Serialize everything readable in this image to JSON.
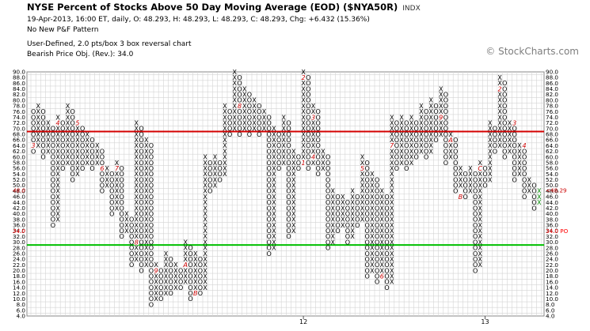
{
  "header": {
    "title": "NYSE Percent of Stocks Above 50 Day Moving Average (EOD) ($NYA50R)",
    "exchange": "INDX",
    "date_line": "19-Apr-2013, 16:00 ET, daily, O: 48.293, H: 48.293, L: 48.293, C: 48.293, Chg: +6.432 (15.36%)",
    "pattern": "No New P&F Pattern",
    "scale": "User-Defined, 2.0 pts/box 3 box reversal chart",
    "bearish_po": "Bearish Price Obj. (Rev.): 34.0",
    "watermark": "© StockCharts.com"
  },
  "colors": {
    "upper_line": "#d40000",
    "lower_line": "#00c000",
    "last_column": "#008800",
    "month_marker": "#cc0000",
    "po_marker": "#ff0000",
    "price_tag": "#cc0000"
  },
  "chart_data": {
    "type": "point_and_figure",
    "box_size": 2.0,
    "reversal": 3,
    "ylim": [
      4,
      90
    ],
    "y_ticks": [
      4,
      6,
      8,
      10,
      12,
      14,
      16,
      18,
      20,
      22,
      24,
      26,
      28,
      30,
      32,
      34,
      36,
      38,
      40,
      42,
      44,
      46,
      48,
      50,
      52,
      54,
      56,
      58,
      60,
      62,
      64,
      66,
      68,
      70,
      72,
      74,
      76,
      78,
      80,
      82,
      84,
      86,
      88,
      90
    ],
    "horizontal_lines": [
      70,
      30
    ],
    "x_tick_labels": [
      "12",
      "13"
    ],
    "columns": [
      {
        "type": "O",
        "from": 76,
        "to": 62
      },
      {
        "type": "X",
        "from": 64,
        "to": 78
      },
      {
        "type": "O",
        "from": 76,
        "to": 60
      },
      {
        "type": "X",
        "from": 62,
        "to": 72
      },
      {
        "type": "O",
        "from": 70,
        "to": 36
      },
      {
        "type": "X",
        "from": 38,
        "to": 74
      },
      {
        "type": "O",
        "from": 72,
        "to": 56
      },
      {
        "type": "X",
        "from": 58,
        "to": 78
      },
      {
        "type": "O",
        "from": 76,
        "to": 52
      },
      {
        "type": "X",
        "from": 54,
        "to": 72
      },
      {
        "type": "O",
        "from": 70,
        "to": 56
      },
      {
        "type": "X",
        "from": 58,
        "to": 68
      },
      {
        "type": "O",
        "from": 66,
        "to": 56
      },
      {
        "type": "X",
        "from": 58,
        "to": 64
      },
      {
        "type": "O",
        "from": 62,
        "to": 48
      },
      {
        "type": "X",
        "from": 50,
        "to": 56
      },
      {
        "type": "O",
        "from": 54,
        "to": 40
      },
      {
        "type": "X",
        "from": 42,
        "to": 58
      },
      {
        "type": "O",
        "from": 56,
        "to": 32
      },
      {
        "type": "X",
        "from": 34,
        "to": 40
      },
      {
        "type": "O",
        "from": 38,
        "to": 22
      },
      {
        "type": "X",
        "from": 24,
        "to": 72
      },
      {
        "type": "O",
        "from": 70,
        "to": 20
      },
      {
        "type": "X",
        "from": 22,
        "to": 66
      },
      {
        "type": "O",
        "from": 64,
        "to": 8
      },
      {
        "type": "X",
        "from": 10,
        "to": 22
      },
      {
        "type": "O",
        "from": 20,
        "to": 10
      },
      {
        "type": "X",
        "from": 12,
        "to": 26
      },
      {
        "type": "O",
        "from": 24,
        "to": 12
      },
      {
        "type": "X",
        "from": 14,
        "to": 22
      },
      {
        "type": "O",
        "from": 20,
        "to": 14
      },
      {
        "type": "X",
        "from": 16,
        "to": 30
      },
      {
        "type": "O",
        "from": 28,
        "to": 10
      },
      {
        "type": "X",
        "from": 12,
        "to": 26
      },
      {
        "type": "O",
        "from": 24,
        "to": 12
      },
      {
        "type": "X",
        "from": 14,
        "to": 60
      },
      {
        "type": "O",
        "from": 58,
        "to": 48
      },
      {
        "type": "X",
        "from": 50,
        "to": 60
      },
      {
        "type": "O",
        "from": 58,
        "to": 52
      },
      {
        "type": "X",
        "from": 54,
        "to": 78
      },
      {
        "type": "O",
        "from": 76,
        "to": 68
      },
      {
        "type": "X",
        "from": 70,
        "to": 90
      },
      {
        "type": "O",
        "from": 88,
        "to": 68
      },
      {
        "type": "X",
        "from": 70,
        "to": 84
      },
      {
        "type": "O",
        "from": 82,
        "to": 68
      },
      {
        "type": "X",
        "from": 70,
        "to": 80
      },
      {
        "type": "O",
        "from": 78,
        "to": 68
      },
      {
        "type": "X",
        "from": 70,
        "to": 76
      },
      {
        "type": "O",
        "from": 74,
        "to": 26
      },
      {
        "type": "X",
        "from": 28,
        "to": 70
      },
      {
        "type": "O",
        "from": 68,
        "to": 56
      },
      {
        "type": "X",
        "from": 58,
        "to": 74
      },
      {
        "type": "O",
        "from": 72,
        "to": 32
      },
      {
        "type": "X",
        "from": 34,
        "to": 62
      },
      {
        "type": "O",
        "from": 60,
        "to": 56
      },
      {
        "type": "X",
        "from": 58,
        "to": 90
      },
      {
        "type": "O",
        "from": 88,
        "to": 56
      },
      {
        "type": "X",
        "from": 58,
        "to": 78
      },
      {
        "type": "O",
        "from": 76,
        "to": 54
      },
      {
        "type": "X",
        "from": 56,
        "to": 62
      },
      {
        "type": "O",
        "from": 60,
        "to": 28
      },
      {
        "type": "X",
        "from": 30,
        "to": 48
      },
      {
        "type": "O",
        "from": 46,
        "to": 34
      },
      {
        "type": "X",
        "from": 36,
        "to": 46
      },
      {
        "type": "O",
        "from": 44,
        "to": 30
      },
      {
        "type": "X",
        "from": 32,
        "to": 48
      },
      {
        "type": "O",
        "from": 46,
        "to": 36
      },
      {
        "type": "X",
        "from": 38,
        "to": 60
      },
      {
        "type": "O",
        "from": 58,
        "to": 18
      },
      {
        "type": "X",
        "from": 20,
        "to": 54
      },
      {
        "type": "O",
        "from": 52,
        "to": 16
      },
      {
        "type": "X",
        "from": 18,
        "to": 48
      },
      {
        "type": "O",
        "from": 46,
        "to": 14
      },
      {
        "type": "X",
        "from": 16,
        "to": 74
      },
      {
        "type": "O",
        "from": 72,
        "to": 56
      },
      {
        "type": "X",
        "from": 58,
        "to": 74
      },
      {
        "type": "O",
        "from": 72,
        "to": 56
      },
      {
        "type": "X",
        "from": 58,
        "to": 74
      },
      {
        "type": "O",
        "from": 72,
        "to": 60
      },
      {
        "type": "X",
        "from": 62,
        "to": 78
      },
      {
        "type": "O",
        "from": 76,
        "to": 60
      },
      {
        "type": "X",
        "from": 62,
        "to": 80
      },
      {
        "type": "O",
        "from": 78,
        "to": 66
      },
      {
        "type": "X",
        "from": 68,
        "to": 84
      },
      {
        "type": "O",
        "from": 82,
        "to": 58
      },
      {
        "type": "X",
        "from": 60,
        "to": 68
      },
      {
        "type": "O",
        "from": 66,
        "to": 48
      },
      {
        "type": "X",
        "from": 50,
        "to": 56
      },
      {
        "type": "O",
        "from": 54,
        "to": 46
      },
      {
        "type": "X",
        "from": 48,
        "to": 56
      },
      {
        "type": "O",
        "from": 54,
        "to": 20
      },
      {
        "type": "X",
        "from": 22,
        "to": 58
      },
      {
        "type": "O",
        "from": 56,
        "to": 50
      },
      {
        "type": "X",
        "from": 52,
        "to": 72
      },
      {
        "type": "O",
        "from": 70,
        "to": 62
      },
      {
        "type": "X",
        "from": 64,
        "to": 88
      },
      {
        "type": "O",
        "from": 86,
        "to": 60
      },
      {
        "type": "X",
        "from": 62,
        "to": 72
      },
      {
        "type": "O",
        "from": 70,
        "to": 52
      },
      {
        "type": "X",
        "from": 54,
        "to": 64
      },
      {
        "type": "O",
        "from": 62,
        "to": 46
      },
      {
        "type": "X",
        "from": 48,
        "to": 52
      },
      {
        "type": "O",
        "from": 50,
        "to": 42
      },
      {
        "type": "X",
        "from": 44,
        "to": 48
      }
    ],
    "month_markers": [
      {
        "label": "3",
        "column": 0,
        "value": 64
      },
      {
        "label": "4",
        "column": 5,
        "value": 72
      },
      {
        "label": "5",
        "column": 9,
        "value": 72
      },
      {
        "label": "6",
        "column": 14,
        "value": 56
      },
      {
        "label": "7",
        "column": 17,
        "value": 56
      },
      {
        "label": "8",
        "column": 21,
        "value": 30
      },
      {
        "label": "9",
        "column": 25,
        "value": 20
      },
      {
        "label": "A",
        "column": 31,
        "value": 22
      },
      {
        "label": "B",
        "column": 33,
        "value": 12
      },
      {
        "label": "8",
        "column": 42,
        "value": 78
      },
      {
        "label": "2",
        "column": 55,
        "value": 88
      },
      {
        "label": "1",
        "column": 55,
        "value": 58
      },
      {
        "label": "3",
        "column": 57,
        "value": 74
      },
      {
        "label": "4",
        "column": 57,
        "value": 60
      },
      {
        "label": "5",
        "column": 67,
        "value": 56
      },
      {
        "label": "6",
        "column": 71,
        "value": 18
      },
      {
        "label": "7",
        "column": 73,
        "value": 64
      },
      {
        "label": "9",
        "column": 83,
        "value": 74
      },
      {
        "label": "A",
        "column": 85,
        "value": 66
      },
      {
        "label": "B",
        "column": 87,
        "value": 46
      },
      {
        "label": "C",
        "column": 91,
        "value": 56
      },
      {
        "label": "2",
        "column": 95,
        "value": 84
      },
      {
        "label": "3",
        "column": 98,
        "value": 72
      },
      {
        "label": "4",
        "column": 100,
        "value": 64
      }
    ],
    "last_price": 48.29,
    "price_objective": 34.0,
    "right_tag_price": "<48.29",
    "right_tag_po": "34.0 PO",
    "left_tag_price": "48.0",
    "left_tag_po": "34.0"
  }
}
